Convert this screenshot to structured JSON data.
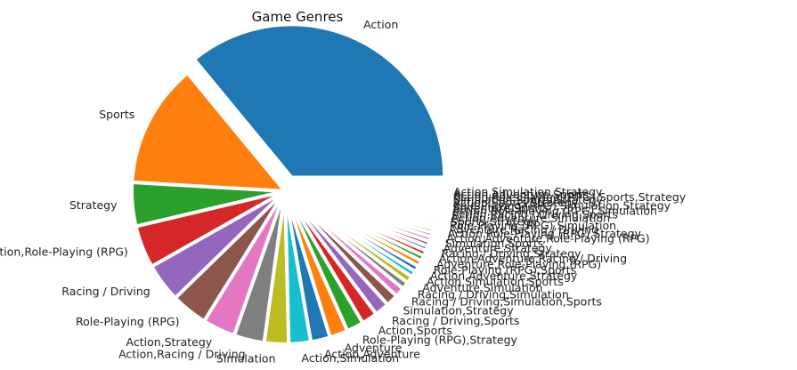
{
  "chart_data": {
    "type": "pie",
    "title": "Game Genres",
    "explode_first": true,
    "slices": [
      {
        "label": "Action",
        "value": 28.0
      },
      {
        "label": "Sports",
        "value": 10.2
      },
      {
        "label": "Strategy",
        "value": 3.6
      },
      {
        "label": "Action,Role-Playing (RPG)",
        "value": 3.5
      },
      {
        "label": "Racing / Driving",
        "value": 3.2
      },
      {
        "label": "Role-Playing (RPG)",
        "value": 3.0
      },
      {
        "label": "Action,Strategy",
        "value": 2.7
      },
      {
        "label": "Action,Racing / Driving",
        "value": 2.5
      },
      {
        "label": "Simulation",
        "value": 2.0
      },
      {
        "label": "Action,Simulation",
        "value": 1.8
      },
      {
        "label": "Action,Adventure",
        "value": 1.6
      },
      {
        "label": "Adventure",
        "value": 1.5
      },
      {
        "label": "Role-Playing (RPG),Strategy",
        "value": 1.4
      },
      {
        "label": "Action,Sports",
        "value": 1.3
      },
      {
        "label": "Racing / Driving,Sports",
        "value": 1.2
      },
      {
        "label": "Simulation,Strategy",
        "value": 1.0
      },
      {
        "label": "Racing / Driving,Simulation,Sports",
        "value": 0.8
      },
      {
        "label": "Racing / Driving,Simulation",
        "value": 0.6
      },
      {
        "label": "Adventure,Simulation",
        "value": 0.6
      },
      {
        "label": "Action,Simulation,Sports",
        "value": 0.5
      },
      {
        "label": "Action,Adventure,Strategy",
        "value": 0.5
      },
      {
        "label": "Role-Playing (RPG),Sports",
        "value": 0.5
      },
      {
        "label": "Adventure,Role-Playing (RPG)",
        "value": 0.45
      },
      {
        "label": "Action,Adventure,Racing / Driving",
        "value": 0.45
      },
      {
        "label": "Racing / Driving,Strategy",
        "value": 0.4
      },
      {
        "label": "Adventure,Strategy",
        "value": 0.4
      },
      {
        "label": "Simulation,Sports",
        "value": 0.4
      },
      {
        "label": "Action,Adventure,Role-Playing (RPG)",
        "value": 0.35
      },
      {
        "label": "Action,Role-Playing (RPG),Strategy",
        "value": 0.35
      },
      {
        "label": "Adventure,Racing / Driving",
        "value": 0.3
      },
      {
        "label": "Role-Playing (RPG),Simulation",
        "value": 0.3
      },
      {
        "label": "Sports,Strategy",
        "value": 0.3
      },
      {
        "label": "Action,Adventure,Simulation",
        "value": 0.25
      },
      {
        "label": "Action,Racing / Driving,Sports",
        "value": 0.25
      },
      {
        "label": "Action,Role-Playing (RPG),Simulation",
        "value": 0.25
      },
      {
        "label": "Adventure,Sports",
        "value": 0.2
      },
      {
        "label": "Role-Playing (RPG),Simulation,Strategy",
        "value": 0.2
      },
      {
        "label": "Action,Sports,Strategy",
        "value": 0.2
      },
      {
        "label": "Simulation,Sports,Strategy",
        "value": 0.2
      },
      {
        "label": "Action,Role-Playing (RPG),Sports,Strategy",
        "value": 0.2
      },
      {
        "label": "Action,Adventure,Sports",
        "value": 0.2
      },
      {
        "label": "Action,Simulation,Strategy",
        "value": 0.2
      }
    ],
    "colors": [
      "#1f77b4",
      "#ff7f0e",
      "#2ca02c",
      "#d62728",
      "#9467bd",
      "#8c564b",
      "#e377c2",
      "#7f7f7f",
      "#bcbd22",
      "#17becf"
    ]
  }
}
